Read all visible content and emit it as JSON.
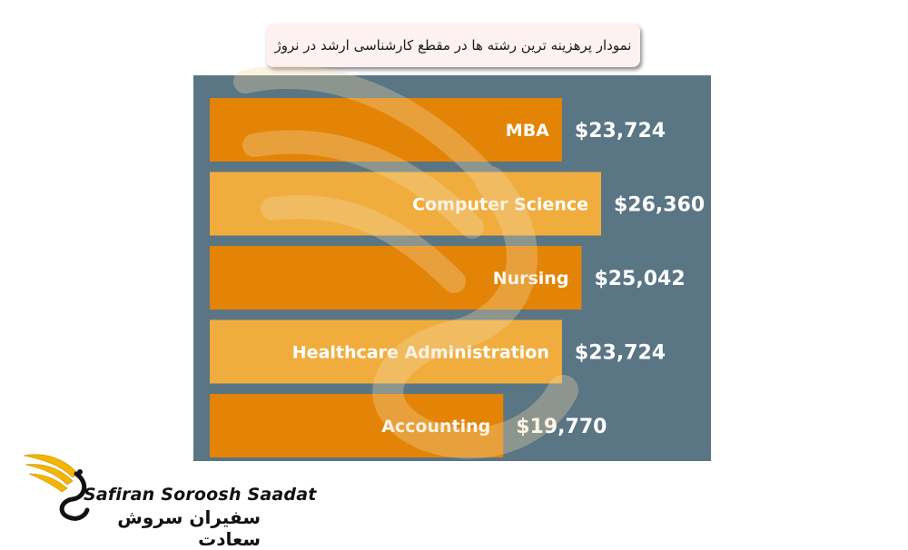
{
  "page": {
    "title": "نمودار پرهزینه ترین رشته ها در مقطع کارشناسی ارشد در نروژ"
  },
  "colors": {
    "panel": "#5a7584",
    "bar_dark": "#e38407",
    "bar_light": "#f0ad3e",
    "label_text": "#ffffff",
    "title_bg": "#fdf1f1"
  },
  "chart_data": {
    "type": "bar",
    "orientation": "horizontal",
    "title": "نمودار پرهزینه ترین رشته ها در مقطع کارشناسی ارشد در نروژ",
    "xlabel": "",
    "ylabel": "",
    "categories": [
      "MBA",
      "Computer Science",
      "Nursing",
      "Healthcare Administration",
      "Accounting"
    ],
    "values": [
      23724,
      26360,
      25042,
      23724,
      19770
    ],
    "value_labels": [
      "$23,724",
      "$26,360",
      "$25,042",
      "$23,724",
      "$19,770"
    ],
    "bar_colors": [
      "#e38407",
      "#f0ad3e",
      "#e38407",
      "#f0ad3e",
      "#e38407"
    ],
    "grid": false,
    "legend": "none"
  },
  "logo": {
    "name_en": "Safiran Soroosh Saadat",
    "name_fa": "سفیران سروش سعادت",
    "icon": "winged-s-logo-icon"
  }
}
